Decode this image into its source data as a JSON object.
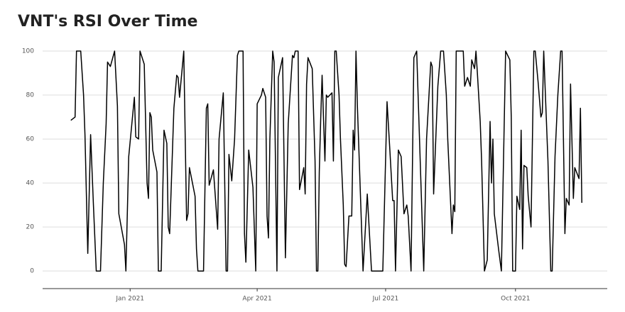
{
  "chart_data": {
    "type": "line",
    "title": "VNT's RSI Over Time",
    "color": "#000000",
    "grid": true,
    "x": [
      "2020-11-20",
      "2020-11-23",
      "2020-11-24",
      "2020-11-27",
      "2020-11-29",
      "2020-11-30",
      "2020-12-02",
      "2020-12-04",
      "2020-12-06",
      "2020-12-08",
      "2020-12-11",
      "2020-12-13",
      "2020-12-15",
      "2020-12-16",
      "2020-12-18",
      "2020-12-21",
      "2020-12-23",
      "2020-12-24",
      "2020-12-28",
      "2020-12-29",
      "2020-12-31",
      "2021-01-04",
      "2021-01-05",
      "2021-01-07",
      "2021-01-08",
      "2021-01-11",
      "2021-01-13",
      "2021-01-14",
      "2021-01-15",
      "2021-01-16",
      "2021-01-17",
      "2021-01-20",
      "2021-01-21",
      "2021-01-23",
      "2021-01-25",
      "2021-01-27",
      "2021-01-28",
      "2021-01-29",
      "2021-02-01",
      "2021-02-03",
      "2021-02-04",
      "2021-02-05",
      "2021-02-08",
      "2021-02-10",
      "2021-02-11",
      "2021-02-12",
      "2021-02-16",
      "2021-02-17",
      "2021-02-18",
      "2021-02-22",
      "2021-02-24",
      "2021-02-25",
      "2021-02-26",
      "2021-03-01",
      "2021-03-02",
      "2021-03-04",
      "2021-03-05",
      "2021-03-08",
      "2021-03-10",
      "2021-03-11",
      "2021-03-12",
      "2021-03-14",
      "2021-03-16",
      "2021-03-18",
      "2021-03-19",
      "2021-03-22",
      "2021-03-23",
      "2021-03-24",
      "2021-03-26",
      "2021-03-29",
      "2021-03-31",
      "2021-04-01",
      "2021-04-04",
      "2021-04-05",
      "2021-04-07",
      "2021-04-08",
      "2021-04-09",
      "2021-04-10",
      "2021-04-12",
      "2021-04-13",
      "2021-04-15",
      "2021-04-16",
      "2021-04-19",
      "2021-04-21",
      "2021-04-23",
      "2021-04-26",
      "2021-04-27",
      "2021-04-28",
      "2021-04-30",
      "2021-05-01",
      "2021-05-04",
      "2021-05-05",
      "2021-05-06",
      "2021-05-07",
      "2021-05-10",
      "2021-05-12",
      "2021-05-13",
      "2021-05-14",
      "2021-05-15",
      "2021-05-16",
      "2021-05-17",
      "2021-05-19",
      "2021-05-20",
      "2021-05-21",
      "2021-05-24",
      "2021-05-25",
      "2021-05-26",
      "2021-05-27",
      "2021-05-29",
      "2021-05-30",
      "2021-06-01",
      "2021-06-02",
      "2021-06-03",
      "2021-06-05",
      "2021-06-07",
      "2021-06-08",
      "2021-06-09",
      "2021-06-10",
      "2021-06-11",
      "2021-06-15",
      "2021-06-18",
      "2021-06-21",
      "2021-06-29",
      "2021-07-02",
      "2021-07-04",
      "2021-07-06",
      "2021-07-07",
      "2021-07-08",
      "2021-07-10",
      "2021-07-12",
      "2021-07-14",
      "2021-07-16",
      "2021-07-17",
      "2021-07-19",
      "2021-07-21",
      "2021-07-23",
      "2021-07-24",
      "2021-07-28",
      "2021-07-30",
      "2021-08-02",
      "2021-08-03",
      "2021-08-04",
      "2021-08-07",
      "2021-08-09",
      "2021-08-11",
      "2021-08-13",
      "2021-08-14",
      "2021-08-17",
      "2021-08-18",
      "2021-08-19",
      "2021-08-20",
      "2021-08-25",
      "2021-08-26",
      "2021-08-28",
      "2021-08-30",
      "2021-08-31",
      "2021-09-02",
      "2021-09-03",
      "2021-09-04",
      "2021-09-06",
      "2021-09-07",
      "2021-09-09",
      "2021-09-11",
      "2021-09-13",
      "2021-09-14",
      "2021-09-15",
      "2021-09-16",
      "2021-09-19",
      "2021-09-21",
      "2021-09-24",
      "2021-09-27",
      "2021-09-28",
      "2021-09-29",
      "2021-10-01",
      "2021-10-02",
      "2021-10-04",
      "2021-10-05",
      "2021-10-06",
      "2021-10-07",
      "2021-10-09",
      "2021-10-10",
      "2021-10-12",
      "2021-10-14",
      "2021-10-15",
      "2021-10-17",
      "2021-10-19",
      "2021-10-20",
      "2021-10-21",
      "2021-10-24",
      "2021-10-26",
      "2021-10-27",
      "2021-10-29",
      "2021-10-31",
      "2021-11-02",
      "2021-11-03",
      "2021-11-05",
      "2021-11-06",
      "2021-11-08",
      "2021-11-09",
      "2021-11-11",
      "2021-11-12",
      "2021-11-15",
      "2021-11-16",
      "2021-11-17"
    ],
    "values": [
      68.5,
      70,
      100,
      100,
      80,
      62,
      8,
      62,
      30,
      0,
      0,
      40,
      67,
      95,
      93,
      100,
      75,
      26,
      12,
      0,
      52,
      79,
      61,
      60,
      100,
      94,
      40,
      33,
      72,
      70,
      55,
      45,
      0,
      0,
      64,
      58,
      20,
      17,
      74,
      89,
      88,
      79,
      100,
      23,
      26,
      47,
      34,
      10,
      0,
      0,
      74,
      76,
      39,
      46,
      37,
      19,
      60,
      81,
      0,
      0,
      53,
      41,
      60,
      98,
      100,
      100,
      17,
      4,
      55,
      38,
      0,
      76,
      80,
      83,
      79,
      25,
      15,
      60,
      100,
      95,
      0,
      88,
      97,
      6,
      67,
      98,
      97,
      100,
      100,
      37,
      47,
      35,
      85,
      97,
      92,
      50,
      0,
      0,
      45,
      69,
      89,
      50,
      80,
      79,
      81,
      50,
      100,
      100,
      80,
      60,
      30,
      3,
      2,
      25,
      25,
      64,
      55,
      100,
      75,
      0,
      35,
      0,
      0,
      77,
      55,
      32,
      32,
      0,
      55,
      52,
      26,
      30,
      25,
      0,
      97,
      100,
      80,
      0,
      60,
      95,
      93,
      35,
      84,
      100,
      100,
      80,
      60,
      17,
      30,
      27,
      100,
      100,
      84,
      88,
      84,
      96,
      92,
      100,
      90,
      68,
      50,
      0,
      5,
      68,
      40,
      60,
      26,
      10,
      0,
      100,
      96,
      70,
      0,
      0,
      34,
      28,
      64,
      10,
      48,
      47,
      34,
      20,
      100,
      100,
      86,
      70,
      72,
      100,
      50,
      0,
      0,
      52,
      80,
      100,
      100,
      17,
      33,
      30,
      85,
      33,
      47,
      42,
      74,
      31
    ],
    "xlim": [
      "2020-10-31",
      "2021-12-05"
    ],
    "xticks": [
      {
        "value": "2021-01-01",
        "label": "Jan 2021"
      },
      {
        "value": "2021-04-01",
        "label": "Apr 2021"
      },
      {
        "value": "2021-07-01",
        "label": "Jul 2021"
      },
      {
        "value": "2021-10-01",
        "label": "Oct 2021"
      }
    ],
    "ylim": [
      -8,
      105
    ],
    "yticks": [
      0,
      20,
      40,
      60,
      80,
      100
    ]
  }
}
